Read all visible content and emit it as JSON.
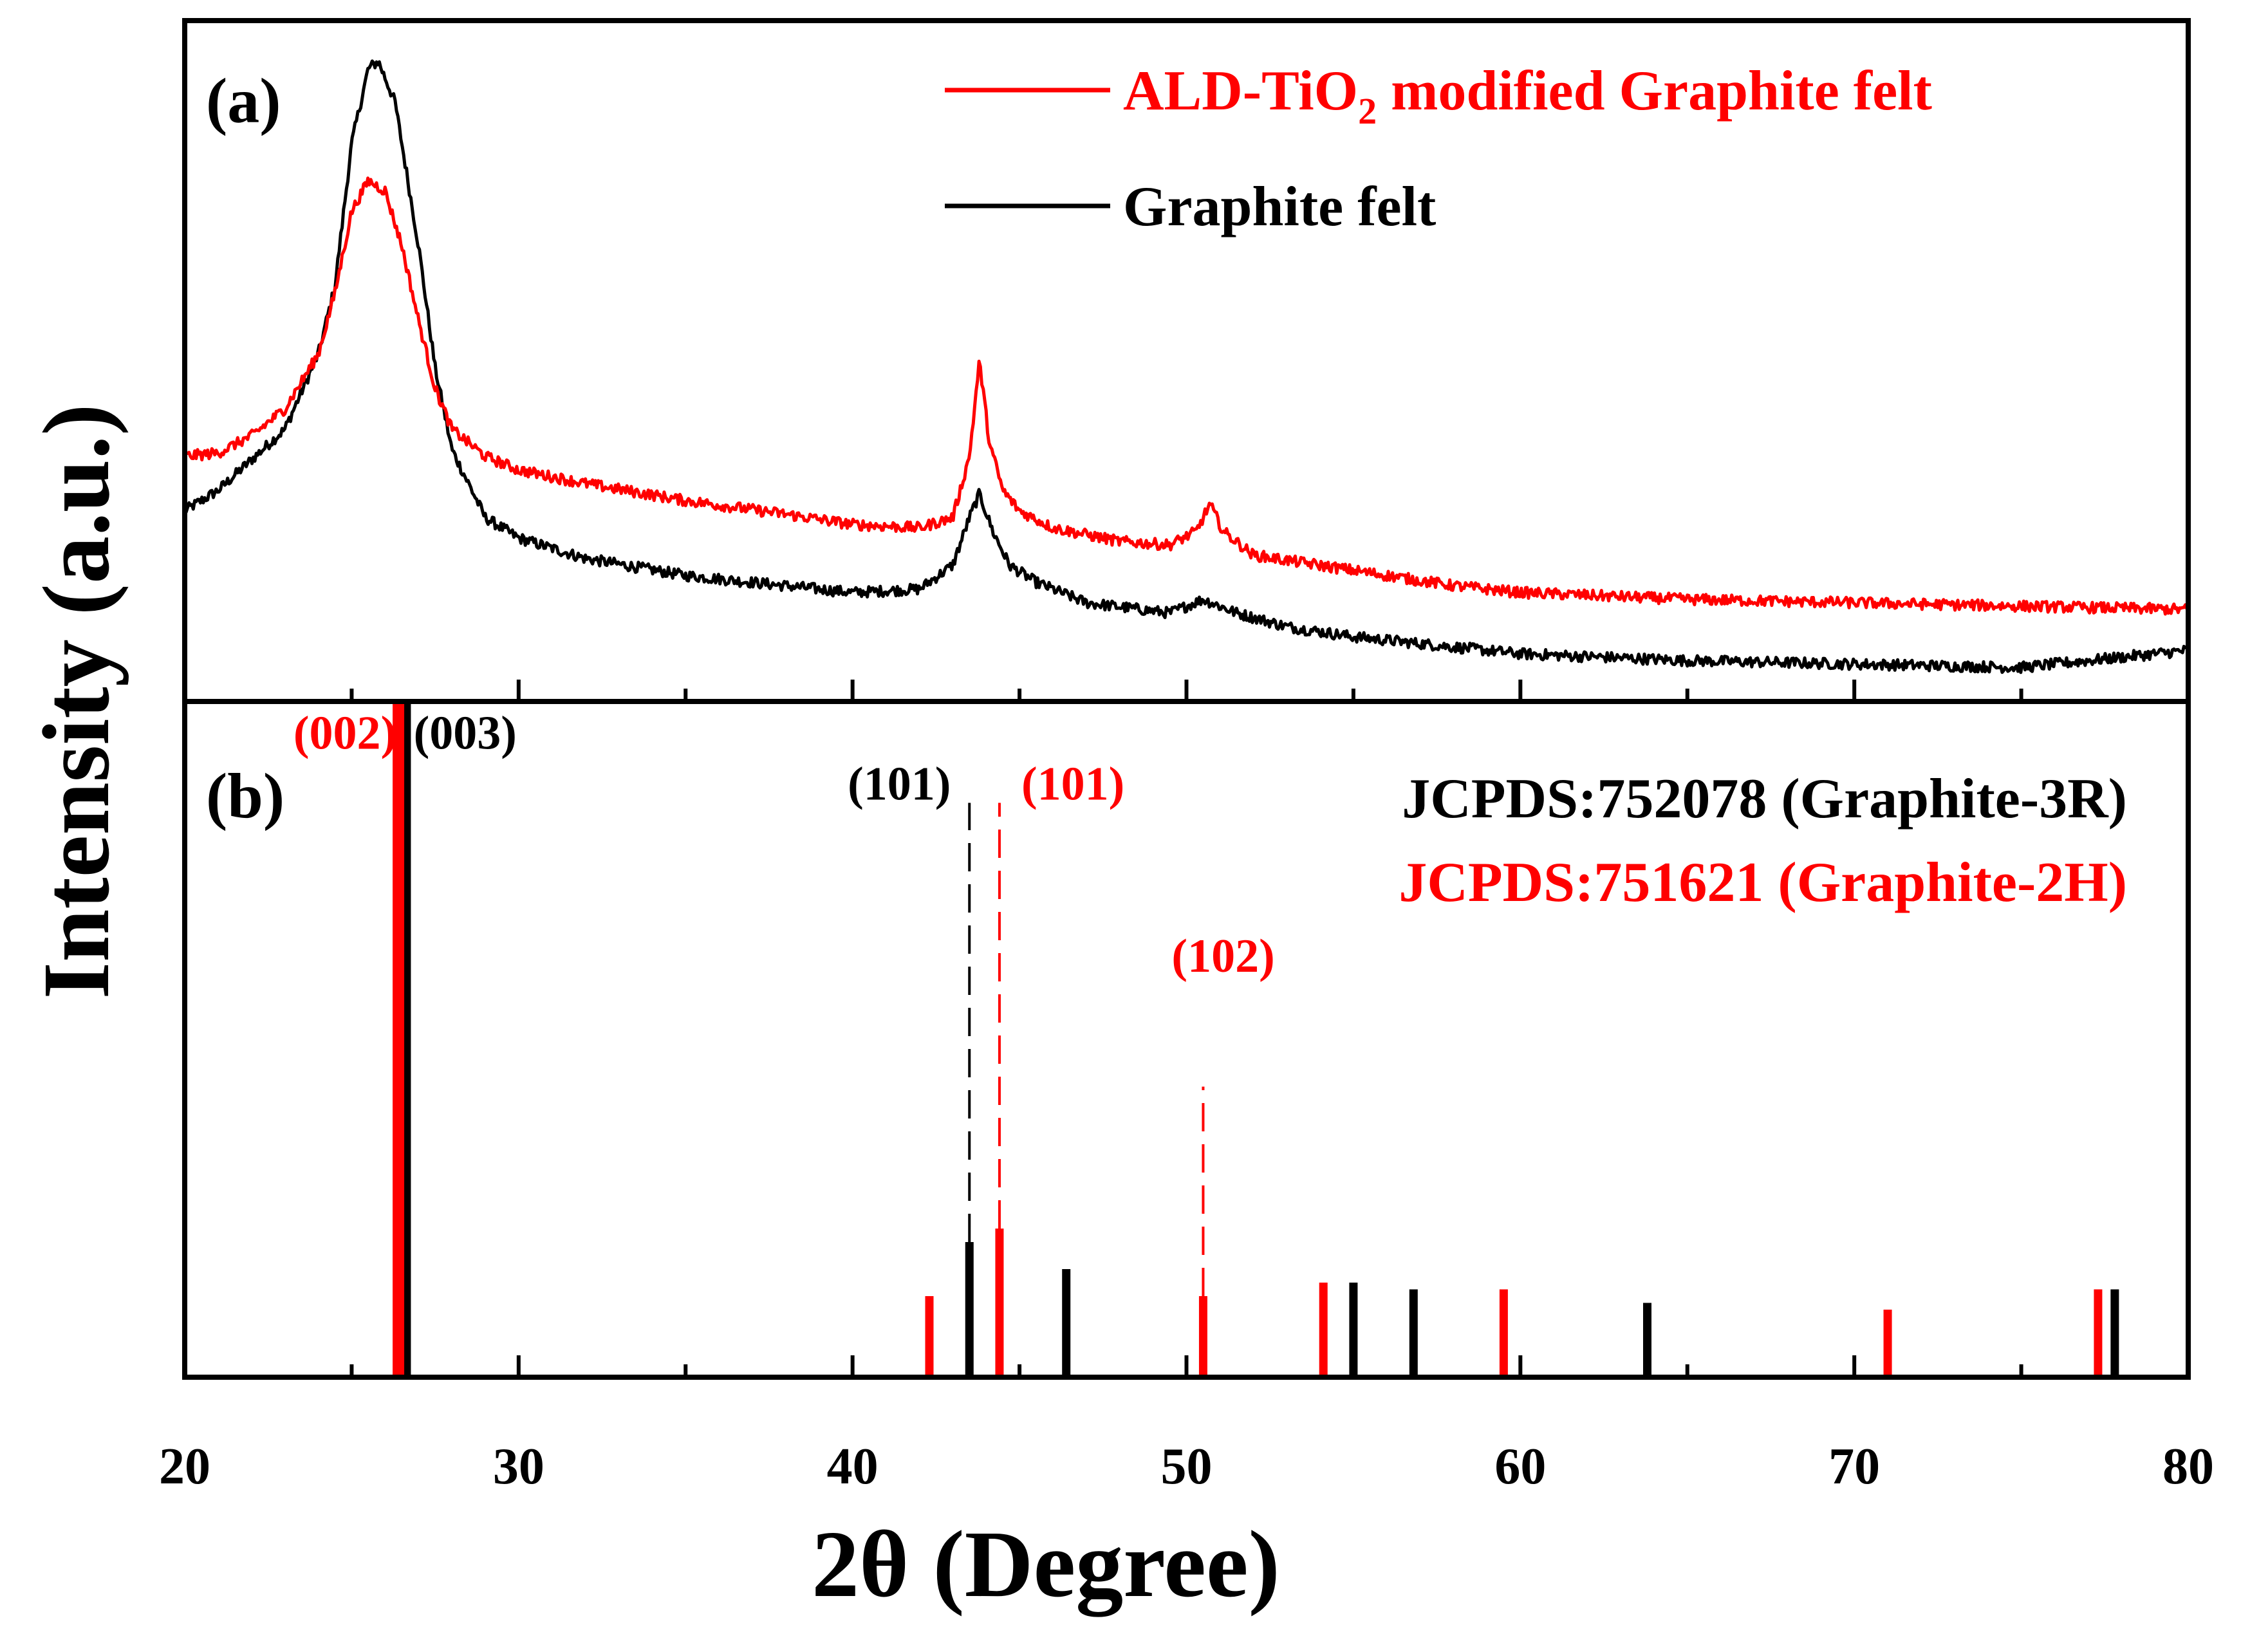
{
  "chart_data": {
    "type": "line",
    "y_title": "Intensity (a.u.)",
    "x_title": "2θ (Degree)",
    "x_range": [
      20,
      80
    ],
    "x_ticks": [
      20,
      30,
      40,
      50,
      60,
      70,
      80
    ],
    "x_tick_labels": [
      "20",
      "30",
      "40",
      "50",
      "60",
      "70",
      "80"
    ],
    "panels": [
      {
        "label": "(a)",
        "type": "line",
        "y_range": [
          0,
          100
        ],
        "legend_position": "top-right",
        "legend": [
          {
            "prefix": "ALD-TiO",
            "subscript": "2",
            "suffix": " modified Graphite felt",
            "color": "#ff0000"
          },
          {
            "prefix": "Graphite felt",
            "subscript": "",
            "suffix": "",
            "color": "#000000"
          }
        ],
        "series": [
          {
            "name": "ALD-TiO2 modified Graphite felt",
            "color": "#ff0000",
            "x": [
              20,
              21,
              22,
              23,
              24,
              24.5,
              25,
              25.5,
              26,
              26.5,
              27,
              27.5,
              28,
              29,
              30,
              32,
              35,
              38,
              40,
              42,
              43,
              43.5,
              43.8,
              44.1,
              44.5,
              45,
              46,
              48,
              49.5,
              50.3,
              50.7,
              51.1,
              52,
              54,
              56,
              58,
              60,
              65,
              70,
              75,
              80
            ],
            "y": [
              36,
              36.5,
              39,
              43,
              51,
              60,
              72,
              76.5,
              75,
              67,
              56,
              46,
              40,
              36,
              34,
              32,
              29.5,
              27.5,
              26,
              25.5,
              27,
              36,
              50,
              38,
              31,
              28,
              25.5,
              23.5,
              23,
              25,
              29,
              25,
              21.5,
              20,
              18.5,
              17,
              16,
              15,
              14.5,
              14,
              13.5
            ]
          },
          {
            "name": "Graphite felt",
            "color": "#000000",
            "x": [
              20,
              21,
              22,
              23,
              24,
              24.5,
              25,
              25.5,
              25.8,
              26.3,
              27,
              27.5,
              28,
              29,
              30,
              32,
              35,
              38,
              40,
              42,
              43,
              43.5,
              43.8,
              44.2,
              44.7,
              45.5,
              47,
              49.5,
              50.5,
              51.5,
              53,
              55,
              58,
              60,
              65,
              70,
              75,
              80
            ],
            "y": [
              28,
              31,
              35.5,
              40,
              51,
              61,
              82,
              93,
              94,
              88,
              67,
              49,
              37,
              27,
              24,
              21,
              18.5,
              17,
              16,
              16.5,
              20,
              27,
              30.5,
              25,
              20,
              17.5,
              14.5,
              13,
              15,
              13,
              11,
              9.5,
              8,
              7,
              6,
              5.5,
              5,
              7.5
            ]
          }
        ]
      },
      {
        "label": "(b)",
        "type": "bar",
        "y_range": [
          0,
          100
        ],
        "legend": [
          {
            "text": "JCPDS:752078 (Graphite-3R)",
            "color": "#000000"
          },
          {
            "text": "JCPDS:751621 (Graphite-2H)",
            "color": "#ff0000"
          }
        ],
        "series": [
          {
            "name": "JCPDS:752078 (Graphite-3R)",
            "color": "#000000",
            "x": [
              26.6,
              43.5,
              46.4,
              55.0,
              56.8,
              63.8,
              77.8
            ],
            "y": [
              100,
              20,
              16,
              14,
              13,
              11,
              13
            ]
          },
          {
            "name": "JCPDS:751621 (Graphite-2H)",
            "color": "#ff0000",
            "x": [
              26.4,
              42.3,
              44.4,
              50.5,
              54.1,
              59.5,
              71.0,
              77.3
            ],
            "y": [
              100,
              12,
              22,
              12,
              14,
              13,
              10,
              13
            ]
          }
        ],
        "guide_lines": [
          {
            "x": 43.5,
            "y_from": 20,
            "y_to": 85,
            "color": "#000000"
          },
          {
            "x": 44.4,
            "y_from": 22,
            "y_to": 85,
            "color": "#ff0000"
          },
          {
            "x": 50.5,
            "y_from": 12,
            "y_to": 43,
            "color": "#ff0000"
          }
        ],
        "annotations": [
          {
            "text": "(002)",
            "x": 24.8,
            "y": 93,
            "anchor": "middle",
            "color": "#ff0000"
          },
          {
            "text": "(003)",
            "x": 28.4,
            "y": 93,
            "anchor": "middle",
            "color": "#000000"
          },
          {
            "text": "(101)",
            "x": 41.4,
            "y": 85.5,
            "anchor": "middle",
            "color": "#000000"
          },
          {
            "text": "(101)",
            "x": 46.6,
            "y": 85.5,
            "anchor": "middle",
            "color": "#ff0000"
          },
          {
            "text": "(102)",
            "x": 51.1,
            "y": 60,
            "anchor": "middle",
            "color": "#ff0000"
          }
        ]
      }
    ]
  }
}
